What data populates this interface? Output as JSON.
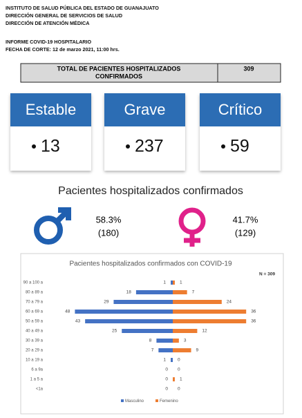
{
  "header": {
    "lines": [
      "INSTITUTO DE SALUD PÚBLICA DEL ESTADO DE GUANAJUATO",
      "DIRECCIÓN GENERAL DE SERVICIOS DE SALUD",
      "DIRECCIÓN DE ATENCIÓN MÉDICA"
    ],
    "report": [
      "INFORME COVID-19 HOSPITALARIO",
      "FECHA DE CORTE: 12 de marzo 2021, 11:00 hrs."
    ]
  },
  "total": {
    "label": [
      "TOTAL DE PACIENTES HOSPITALIZADOS",
      "CONFIRMADOS"
    ],
    "value": 309
  },
  "cards": [
    {
      "label": "Estable",
      "value": 13
    },
    {
      "label": "Grave",
      "value": 237
    },
    {
      "label": "Crítico",
      "value": 59
    }
  ],
  "gender": {
    "title": "Pacientes hospitalizados confirmados",
    "male": {
      "percent": "58.3%",
      "count": "(180)"
    },
    "female": {
      "percent": "41.7%",
      "count": "(129)"
    }
  },
  "chart_data": {
    "type": "pyramid",
    "title": "Pacientes hospitalizados confirmados con COVID-19",
    "annotation": "N = 309",
    "categories": [
      "90 a 100 a",
      "80 a 89 a",
      "70 a 79 a",
      "60 a 69 a",
      "50 a 59 a",
      "40 a 49 a",
      "30 a 39 a",
      "20 a 29 a",
      "10 a 19 a",
      "6 a 9a",
      "1 a 5 a",
      "<1a"
    ],
    "series": [
      {
        "name": "Masculino",
        "color": "#4472c4",
        "values": [
          1,
          18,
          29,
          48,
          43,
          25,
          8,
          7,
          1,
          0,
          0,
          0
        ]
      },
      {
        "name": "Femenino",
        "color": "#ed7d31",
        "values": [
          1,
          7,
          24,
          36,
          36,
          12,
          3,
          9,
          0,
          0,
          1,
          0
        ]
      }
    ]
  }
}
